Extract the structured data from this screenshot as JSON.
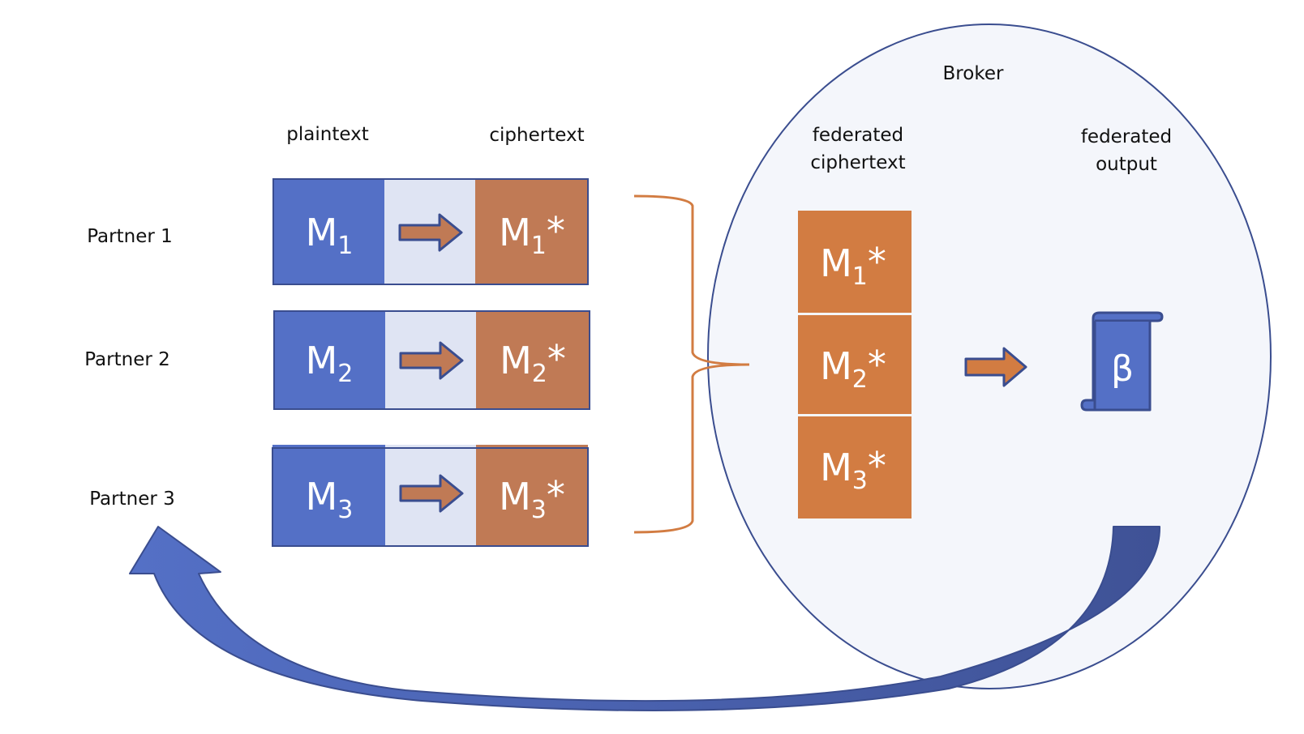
{
  "broker": {
    "title": "Broker"
  },
  "headers": {
    "plaintext": "plaintext",
    "ciphertext": "ciphertext",
    "federated_ciphertext": [
      "federated",
      "ciphertext"
    ],
    "federated_output": [
      "federated",
      "output"
    ]
  },
  "partners": [
    {
      "label": "Partner 1",
      "plain": "M",
      "sub": "1",
      "cipher_suffix": "*"
    },
    {
      "label": "Partner 2",
      "plain": "M",
      "sub": "2",
      "cipher_suffix": "*"
    },
    {
      "label": "Partner 3",
      "plain": "M",
      "sub": "3",
      "cipher_suffix": "*"
    }
  ],
  "federated_blocks": [
    {
      "base": "M",
      "sub": "1",
      "suffix": "*"
    },
    {
      "base": "M",
      "sub": "2",
      "suffix": "*"
    },
    {
      "base": "M",
      "sub": "3",
      "suffix": "*"
    }
  ],
  "output_symbol": "β",
  "colors": {
    "blue": "#5470c6",
    "blue_dark": "#3f5296",
    "light_blue": "#dfe4f3",
    "brown": "#c07a55",
    "orange": "#d27c42",
    "broker_fill": "#f4f6fb",
    "broker_stroke": "#3a4d8f"
  },
  "icons": {
    "arrow": "right-arrow-icon",
    "scroll": "scroll-icon",
    "curved_arrow": "curved-return-arrow-icon",
    "brace": "right-brace-icon"
  }
}
